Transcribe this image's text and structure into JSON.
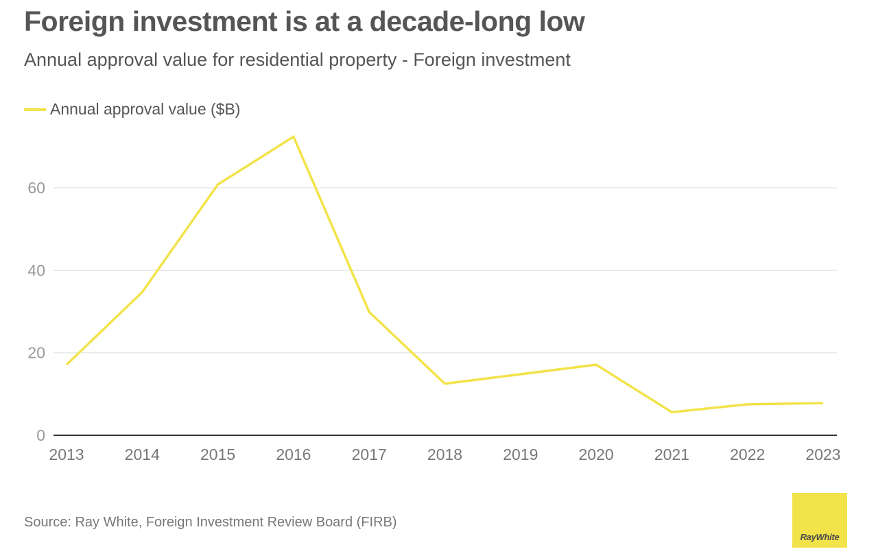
{
  "header": {
    "title": "Foreign investment is at a decade-long low",
    "subtitle": "Annual approval value for residential property - Foreign investment"
  },
  "footer": {
    "source": "Source: Ray White, Foreign Investment Review Board (FIRB)",
    "logo_text": "RayWhite"
  },
  "colors": {
    "series": "#f2e34a",
    "text": "#555555",
    "axis_tick": "#999999",
    "gridline": "#e6e6e6",
    "baseline": "#333333",
    "logo_bg": "#f2e34a"
  },
  "chart_data": {
    "type": "line",
    "title": "Foreign investment is at a decade-long low",
    "subtitle": "Annual approval value for residential property - Foreign investment",
    "xlabel": "",
    "ylabel": "",
    "x": [
      "2013",
      "2014",
      "2015",
      "2016",
      "2017",
      "2018",
      "2019",
      "2020",
      "2021",
      "2022",
      "2023"
    ],
    "series": [
      {
        "name": "Annual approval value ($B)",
        "values": [
          17.1,
          34.7,
          60.8,
          72.4,
          29.9,
          12.5,
          14.8,
          17.1,
          5.6,
          7.5,
          7.8
        ]
      }
    ],
    "ylim": [
      0,
      75
    ],
    "yticks": [
      0,
      20,
      40,
      60
    ],
    "grid": true,
    "legend": "top-left",
    "source": "Source: Ray White, Foreign Investment Review Board (FIRB)"
  }
}
